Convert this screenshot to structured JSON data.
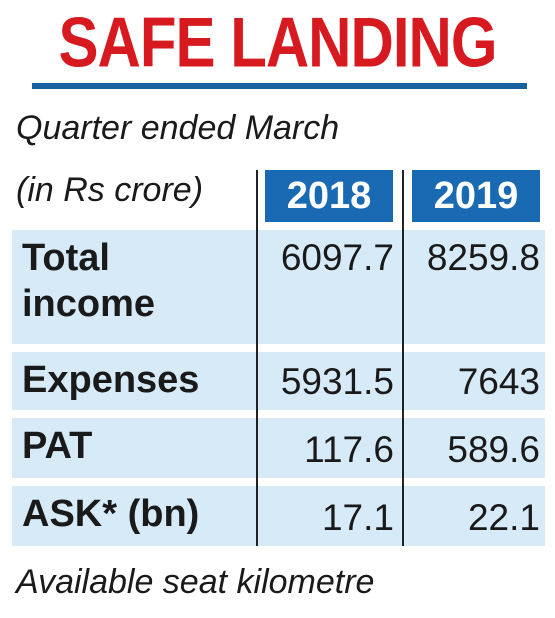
{
  "title": "SAFE LANDING",
  "subtitle": "Quarter ended March",
  "unit_label": "(in Rs crore)",
  "colors": {
    "title": "#d71920",
    "header_fill": "#1a6ab3",
    "rule": "#1a5f9e",
    "row_fill": "#d6eaf8"
  },
  "chart_data": {
    "type": "table",
    "title": "SAFE LANDING",
    "subtitle": "Quarter ended March",
    "unit": "(in Rs crore)",
    "columns": [
      "2018",
      "2019"
    ],
    "rows": [
      {
        "label_lines": [
          "Total",
          "income"
        ],
        "values": [
          "6097.7",
          "8259.8"
        ]
      },
      {
        "label_lines": [
          "Expenses"
        ],
        "values": [
          "5931.5",
          "7643"
        ]
      },
      {
        "label_lines": [
          "PAT"
        ],
        "values": [
          "117.6",
          "589.6"
        ]
      },
      {
        "label_lines": [
          "ASK* (bn)"
        ],
        "values": [
          "17.1",
          "22.1"
        ]
      }
    ],
    "footnote": "Available seat kilometre"
  }
}
